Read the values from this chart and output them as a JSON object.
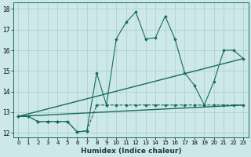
{
  "title": "",
  "xlabel": "Humidex (Indice chaleur)",
  "ylabel": "",
  "xlim": [
    -0.5,
    23.5
  ],
  "ylim": [
    11.8,
    18.3
  ],
  "yticks": [
    12,
    13,
    14,
    15,
    16,
    17,
    18
  ],
  "xticks": [
    0,
    1,
    2,
    3,
    4,
    5,
    6,
    7,
    8,
    9,
    10,
    11,
    12,
    13,
    14,
    15,
    16,
    17,
    18,
    19,
    20,
    21,
    22,
    23
  ],
  "bg_color": "#cce8e8",
  "line_color": "#1a6b60",
  "grid_color": "#aacccc",
  "series": [
    {
      "x": [
        0,
        1,
        2,
        3,
        4,
        5,
        6,
        7,
        8,
        9,
        10,
        11,
        12,
        13,
        14,
        15,
        16,
        17,
        18,
        19,
        20,
        21,
        22,
        23
      ],
      "y": [
        12.8,
        12.8,
        12.55,
        12.55,
        12.55,
        12.55,
        12.05,
        12.1,
        13.35,
        13.35,
        13.35,
        13.35,
        13.35,
        13.35,
        13.35,
        13.35,
        13.35,
        13.35,
        13.35,
        13.35,
        13.35,
        13.35,
        13.35,
        13.35
      ],
      "style": "--",
      "marker": "D",
      "markersize": 1.8,
      "linewidth": 0.8
    },
    {
      "x": [
        0,
        1,
        2,
        3,
        4,
        5,
        6,
        7,
        8,
        9,
        10,
        11,
        12,
        13,
        14,
        15,
        16,
        17,
        18,
        19,
        20,
        21,
        22,
        23
      ],
      "y": [
        12.8,
        12.8,
        12.55,
        12.55,
        12.55,
        12.55,
        12.05,
        12.1,
        14.9,
        13.35,
        16.55,
        17.35,
        17.85,
        16.55,
        16.6,
        17.65,
        16.55,
        14.9,
        14.3,
        13.35,
        14.5,
        16.0,
        16.0,
        15.6
      ],
      "style": "-",
      "marker": "D",
      "markersize": 1.8,
      "linewidth": 0.8
    },
    {
      "x": [
        0,
        23
      ],
      "y": [
        12.8,
        13.35
      ],
      "style": "-",
      "marker": null,
      "markersize": 0,
      "linewidth": 1.0
    },
    {
      "x": [
        0,
        23
      ],
      "y": [
        12.8,
        15.6
      ],
      "style": "-",
      "marker": null,
      "markersize": 0,
      "linewidth": 1.0
    }
  ]
}
